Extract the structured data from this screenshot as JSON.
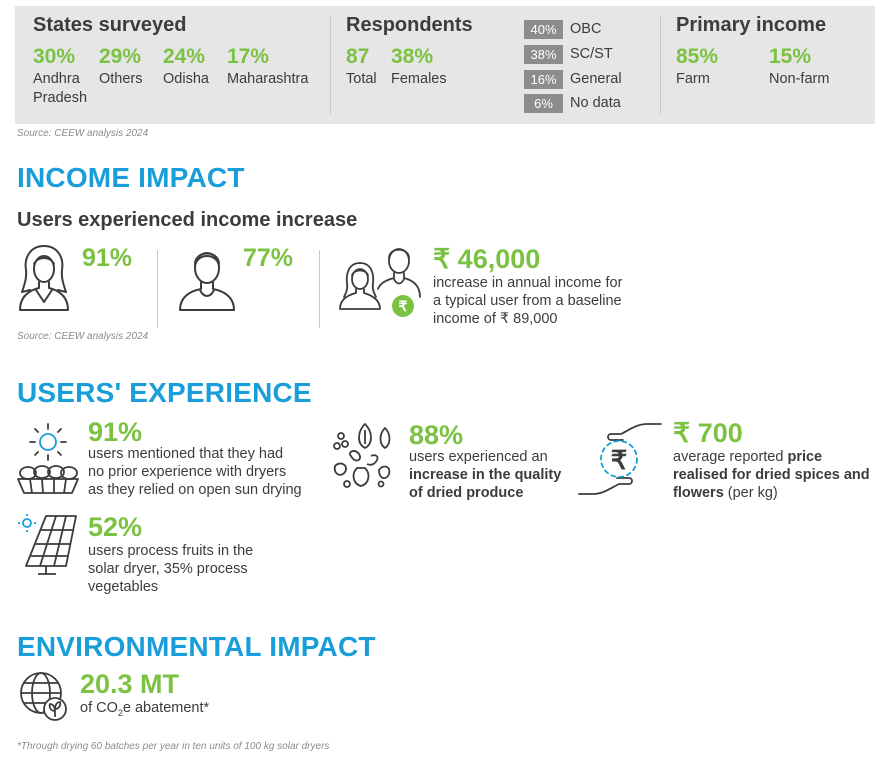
{
  "top_panel": {
    "states": {
      "title": "States surveyed",
      "items": [
        {
          "value": "30%",
          "label": "Andhra Pradesh"
        },
        {
          "value": "29%",
          "label": "Others"
        },
        {
          "value": "24%",
          "label": "Odisha"
        },
        {
          "value": "17%",
          "label": "Maharashtra"
        }
      ]
    },
    "respondents": {
      "title": "Respondents",
      "items": [
        {
          "value": "87",
          "label": "Total"
        },
        {
          "value": "38%",
          "label": "Females"
        }
      ],
      "categories": [
        {
          "value": "40%",
          "label": "OBC"
        },
        {
          "value": "38%",
          "label": "SC/ST"
        },
        {
          "value": "16%",
          "label": "General"
        },
        {
          "value": "6%",
          "label": "No data"
        }
      ]
    },
    "primary_income": {
      "title": "Primary income",
      "items": [
        {
          "value": "85%",
          "label": "Farm"
        },
        {
          "value": "15%",
          "label": "Non-farm"
        }
      ]
    },
    "source": "Source: CEEW analysis 2024"
  },
  "income_impact": {
    "heading": "INCOME IMPACT",
    "subheading": "Users experienced income increase",
    "female_pct": "91%",
    "male_pct": "77%",
    "increase_value": "₹ 46,000",
    "increase_text_1": "increase in annual income for",
    "increase_text_2": "a typical user from a baseline",
    "increase_text_3": "income of ₹ 89,000",
    "rupee_symbol": "₹",
    "source": "Source: CEEW analysis 2024"
  },
  "users_experience": {
    "heading": "USERS' EXPERIENCE",
    "sun_drying": {
      "value": "91%",
      "line1": "users mentioned that they had",
      "line2": "no prior experience with dryers",
      "line3": "as they relied on open sun drying"
    },
    "quality": {
      "value": "88%",
      "line1": "users experienced an",
      "line2": "increase in the quality",
      "line3": "of dried produce"
    },
    "price": {
      "value": "₹ 700",
      "line1_plain": "average reported ",
      "line1_bold": "price",
      "line2": "realised for dried spices and",
      "line3_bold": "flowers",
      "line3_plain": " (per kg)",
      "rupee_symbol": "₹"
    },
    "fruits": {
      "value": "52%",
      "line1": "users process fruits in the",
      "line2": "solar dryer, 35% process",
      "line3": "vegetables"
    }
  },
  "environmental_impact": {
    "heading": "ENVIRONMENTAL IMPACT",
    "value": "20.3 MT",
    "text_pre": "of CO",
    "text_sub": "2",
    "text_post": "e abatement*"
  },
  "footnote": "*Through drying 60 batches per year in ten units of 100 kg solar dryers",
  "colors": {
    "accent_green": "#7cc242",
    "heading_blue": "#1a9ed9",
    "panel_grey": "#e6e6e6",
    "box_grey": "#8c8c8c",
    "text_dark": "#3c3c3c"
  },
  "icons": [
    "woman-icon",
    "man-icon",
    "couple-icon",
    "rupee-badge-icon",
    "sun-icon",
    "drying-tray-icon",
    "seeds-icon",
    "hands-rupee-icon",
    "solar-panel-icon",
    "globe-leaf-icon"
  ]
}
